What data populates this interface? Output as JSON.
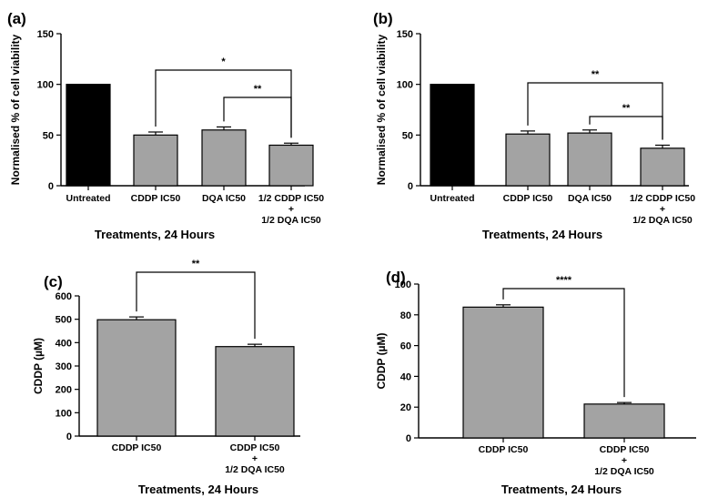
{
  "colors": {
    "control_bar": "#000000",
    "treatment_bar": "#a3a3a3",
    "axis": "#000000"
  },
  "chart_data": [
    {
      "panel": "(a)",
      "type": "bar",
      "title": "",
      "xlabel": "Treatments, 24 Hours",
      "ylabel": "Normalised % of cell viability",
      "ylim": [
        0,
        150
      ],
      "yticks": [
        0,
        50,
        100,
        150
      ],
      "categories": [
        [
          "Untreated"
        ],
        [
          "CDDP IC50"
        ],
        [
          "DQA IC50"
        ],
        [
          "1/2 CDDP IC50",
          "+",
          "1/2 DQA IC50"
        ]
      ],
      "values": [
        100,
        50,
        55,
        40
      ],
      "errors": [
        0,
        3,
        3,
        2
      ],
      "bar_colors": [
        "#000000",
        "#a3a3a3",
        "#a3a3a3",
        "#a3a3a3"
      ],
      "significance": [
        {
          "from": 1,
          "to": 3,
          "label": "*"
        },
        {
          "from": 2,
          "to": 3,
          "label": "**"
        }
      ]
    },
    {
      "panel": "(b)",
      "type": "bar",
      "title": "",
      "xlabel": "Treatments, 24 Hours",
      "ylabel": "Normalised % of cell viability",
      "ylim": [
        0,
        150
      ],
      "yticks": [
        0,
        50,
        100,
        150
      ],
      "categories": [
        [
          "Untreated"
        ],
        [
          "CDDP IC50"
        ],
        [
          "DQA IC50"
        ],
        [
          "1/2 CDDP IC50",
          "+",
          "1/2 DQA IC50"
        ]
      ],
      "values": [
        100,
        51,
        52,
        37
      ],
      "errors": [
        0,
        3,
        3,
        3
      ],
      "bar_colors": [
        "#000000",
        "#a3a3a3",
        "#a3a3a3",
        "#a3a3a3"
      ],
      "significance": [
        {
          "from": 1,
          "to": 3,
          "label": "**"
        },
        {
          "from": 2,
          "to": 3,
          "label": "**"
        }
      ]
    },
    {
      "panel": "(c)",
      "type": "bar",
      "title": "",
      "xlabel": "Treatments, 24 Hours",
      "ylabel": "CDDP (µM)",
      "ylim": [
        0,
        600
      ],
      "yticks": [
        0,
        100,
        200,
        300,
        400,
        500,
        600
      ],
      "categories": [
        [
          "CDDP IC50"
        ],
        [
          "CDDP IC50",
          "+",
          "1/2 DQA IC50"
        ]
      ],
      "values": [
        498,
        383
      ],
      "errors": [
        12,
        10
      ],
      "bar_colors": [
        "#a3a3a3",
        "#a3a3a3"
      ],
      "significance": [
        {
          "from": 0,
          "to": 1,
          "label": "**"
        }
      ]
    },
    {
      "panel": "(d)",
      "type": "bar",
      "title": "",
      "xlabel": "Treatments, 24 Hours",
      "ylabel": "CDDP (µM)",
      "ylim": [
        0,
        100
      ],
      "yticks": [
        0,
        20,
        40,
        60,
        80,
        100
      ],
      "categories": [
        [
          "CDDP IC50"
        ],
        [
          "CDDP IC50",
          "+",
          "1/2 DQA IC50"
        ]
      ],
      "values": [
        85,
        22
      ],
      "errors": [
        1.5,
        1
      ],
      "bar_colors": [
        "#a3a3a3",
        "#a3a3a3"
      ],
      "significance": [
        {
          "from": 0,
          "to": 1,
          "label": "****"
        }
      ]
    }
  ]
}
